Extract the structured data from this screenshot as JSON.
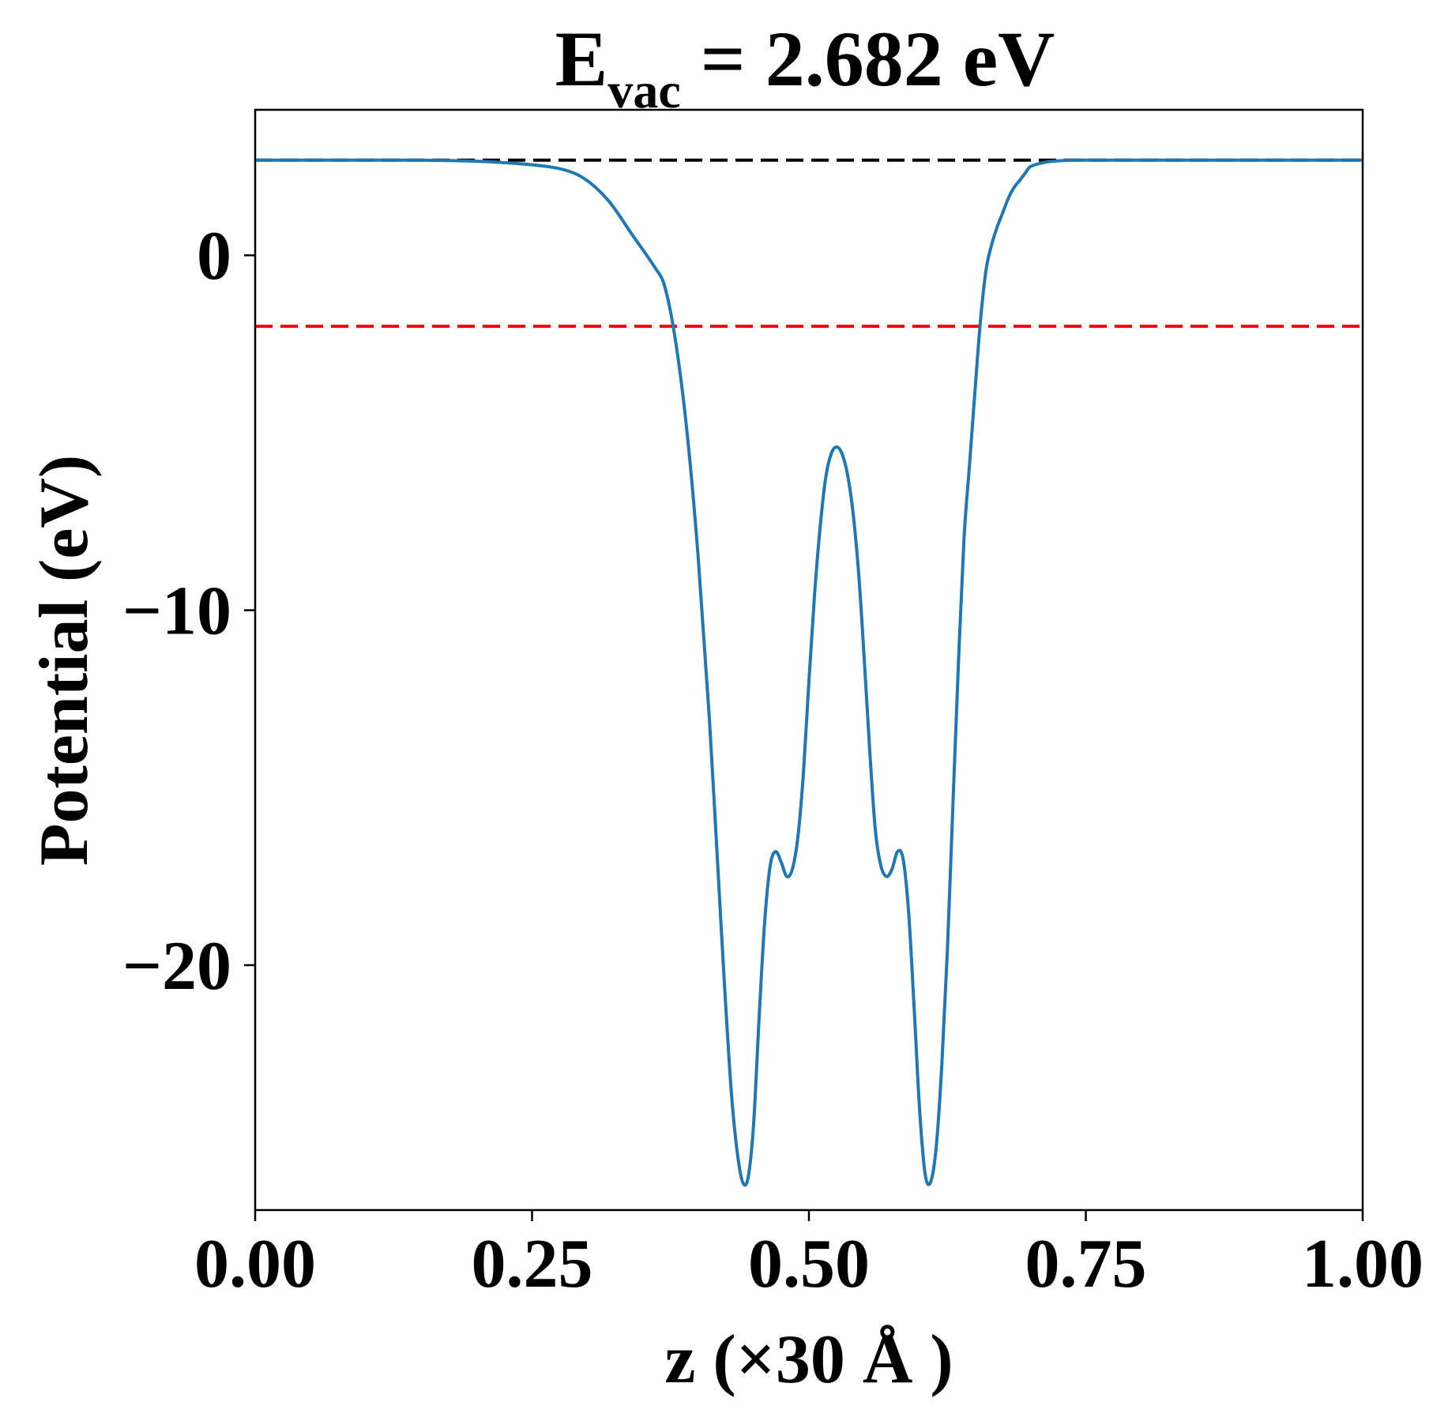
{
  "chart_data": {
    "type": "line",
    "title": {
      "main": "E",
      "subscript": "vac",
      "rest": " = 2.682 eV"
    },
    "xlabel": "z (×30 Å )",
    "ylabel": "Potential (eV)",
    "xlim": [
      0.0,
      1.0
    ],
    "ylim": [
      -26.9,
      4.1
    ],
    "x_ticks": [
      0.0,
      0.25,
      0.5,
      0.75,
      1.0
    ],
    "x_tick_labels": [
      "0.00",
      "0.25",
      "0.50",
      "0.75",
      "1.00"
    ],
    "y_ticks": [
      0,
      -10,
      -20
    ],
    "y_tick_labels": [
      "0",
      "−10",
      "−20"
    ],
    "grid": false,
    "legend": "none",
    "reference_lines": [
      {
        "y": 2.682,
        "color": "#000000",
        "style": "dashed"
      },
      {
        "y": -2.0,
        "color": "#ff0000",
        "style": "dashed"
      }
    ],
    "series": [
      {
        "color": "#1f77b4",
        "x": [
          0.0,
          0.05,
          0.1,
          0.15,
          0.2,
          0.25,
          0.28,
          0.3,
          0.32,
          0.34,
          0.36,
          0.37,
          0.38,
          0.39,
          0.4,
          0.41,
          0.42,
          0.425,
          0.43,
          0.435,
          0.44,
          0.445,
          0.45,
          0.455,
          0.46,
          0.465,
          0.47,
          0.475,
          0.48,
          0.485,
          0.49,
          0.495,
          0.5,
          0.505,
          0.51,
          0.515,
          0.52,
          0.525,
          0.53,
          0.535,
          0.54,
          0.545,
          0.55,
          0.555,
          0.56,
          0.565,
          0.57,
          0.575,
          0.58,
          0.585,
          0.59,
          0.595,
          0.6,
          0.605,
          0.61,
          0.615,
          0.62,
          0.625,
          0.63,
          0.635,
          0.64,
          0.645,
          0.65,
          0.655,
          0.66,
          0.665,
          0.67,
          0.675,
          0.68,
          0.685,
          0.69,
          0.695,
          0.7,
          0.71,
          0.72,
          0.73,
          0.74,
          0.75,
          0.77,
          0.79,
          0.81,
          0.83,
          0.85,
          0.88,
          0.9,
          0.95,
          1.0
        ],
        "y": [
          2.68,
          2.68,
          2.68,
          2.68,
          2.65,
          2.55,
          2.4,
          2.1,
          1.5,
          0.6,
          -0.3,
          -0.9,
          -2.5,
          -5.0,
          -8.5,
          -13.0,
          -18.5,
          -21.2,
          -23.6,
          -25.2,
          -26.1,
          -26.0,
          -24.5,
          -21.5,
          -18.8,
          -17.2,
          -16.8,
          -17.1,
          -17.5,
          -17.3,
          -16.4,
          -14.6,
          -12.0,
          -9.6,
          -7.7,
          -6.3,
          -5.6,
          -5.4,
          -5.6,
          -6.2,
          -7.3,
          -9.0,
          -11.4,
          -14.0,
          -16.2,
          -17.2,
          -17.5,
          -17.3,
          -16.8,
          -17.0,
          -18.5,
          -21.2,
          -24.1,
          -25.9,
          -26.1,
          -25.1,
          -22.8,
          -19.6,
          -15.5,
          -11.5,
          -8.0,
          -5.9,
          -3.8,
          -1.8,
          -0.4,
          0.3,
          0.8,
          1.2,
          1.6,
          1.9,
          2.1,
          2.3,
          2.5,
          2.6,
          2.65,
          2.67,
          2.68,
          2.68,
          2.68,
          2.68,
          2.68,
          2.68,
          2.68,
          2.68,
          2.68,
          2.68,
          2.68
        ]
      }
    ]
  }
}
